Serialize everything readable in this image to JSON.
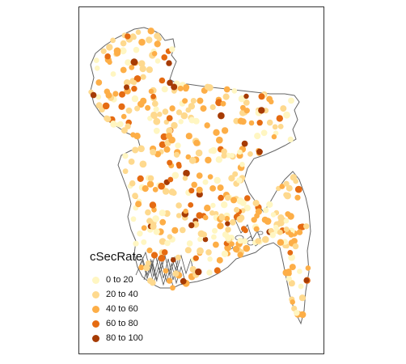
{
  "legend": {
    "title": "cSecRate",
    "items": [
      {
        "label": "0 to 20",
        "color": "#fff6c2"
      },
      {
        "label": "20 to 40",
        "color": "#fed98e"
      },
      {
        "label": "40 to 60",
        "color": "#fdae47"
      },
      {
        "label": "60 to 80",
        "color": "#e56b12"
      },
      {
        "label": "80 to 100",
        "color": "#a63b04"
      }
    ]
  },
  "map": {
    "region": "Bangladesh",
    "variable": "cSecRate",
    "outline_color": "#666666",
    "point_count": 480
  }
}
